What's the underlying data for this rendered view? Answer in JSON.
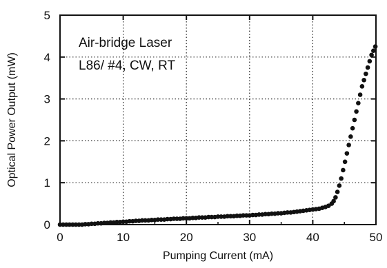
{
  "chart_data": {
    "type": "scatter",
    "title": "",
    "xlabel": "Pumping Current (mA)",
    "ylabel": "Optical Power Output (mW)",
    "xlim": [
      0,
      50
    ],
    "ylim": [
      0,
      5
    ],
    "x_ticks": [
      0,
      10,
      20,
      30,
      40,
      50
    ],
    "y_ticks": [
      0,
      1,
      2,
      3,
      4,
      5
    ],
    "grid": "dotted",
    "annotations": [
      "Air-bridge Laser",
      "L86/ #4, CW, RT"
    ],
    "series": [
      {
        "marker": "filled-circle",
        "color": "#111111",
        "x": [
          0.0,
          0.5,
          1.0,
          1.5,
          2.0,
          2.5,
          3.0,
          3.5,
          4.0,
          4.5,
          5.0,
          5.5,
          6.0,
          6.5,
          7.0,
          7.5,
          8.0,
          8.5,
          9.0,
          9.5,
          10.0,
          10.5,
          11.0,
          11.5,
          12.0,
          12.5,
          13.0,
          13.5,
          14.0,
          14.5,
          15.0,
          15.5,
          16.0,
          16.5,
          17.0,
          17.5,
          18.0,
          18.5,
          19.0,
          19.5,
          20.0,
          20.5,
          21.0,
          21.5,
          22.0,
          22.5,
          23.0,
          23.5,
          24.0,
          24.5,
          25.0,
          25.5,
          26.0,
          26.5,
          27.0,
          27.5,
          28.0,
          28.5,
          29.0,
          29.5,
          30.0,
          30.5,
          31.0,
          31.5,
          32.0,
          32.5,
          33.0,
          33.5,
          34.0,
          34.5,
          35.0,
          35.5,
          36.0,
          36.5,
          37.0,
          37.5,
          38.0,
          38.5,
          39.0,
          39.5,
          40.0,
          40.5,
          41.0,
          41.5,
          42.0,
          42.5,
          43.0,
          43.3,
          43.6,
          43.9,
          44.2,
          44.5,
          44.8,
          45.1,
          45.4,
          45.7,
          46.0,
          46.3,
          46.6,
          46.9,
          47.2,
          47.5,
          47.8,
          48.1,
          48.4,
          48.7,
          49.0,
          49.3,
          49.6,
          49.9
        ],
        "y": [
          0.0,
          0.0,
          0.0,
          0.0,
          0.0,
          0.0,
          0.0,
          0.0,
          0.01,
          0.01,
          0.02,
          0.02,
          0.03,
          0.03,
          0.04,
          0.04,
          0.05,
          0.05,
          0.06,
          0.06,
          0.07,
          0.07,
          0.08,
          0.08,
          0.09,
          0.09,
          0.1,
          0.1,
          0.1,
          0.11,
          0.11,
          0.12,
          0.12,
          0.12,
          0.13,
          0.13,
          0.14,
          0.14,
          0.14,
          0.15,
          0.15,
          0.15,
          0.16,
          0.16,
          0.17,
          0.17,
          0.17,
          0.18,
          0.18,
          0.18,
          0.19,
          0.19,
          0.19,
          0.2,
          0.2,
          0.2,
          0.21,
          0.21,
          0.22,
          0.22,
          0.22,
          0.23,
          0.23,
          0.24,
          0.24,
          0.25,
          0.25,
          0.26,
          0.26,
          0.27,
          0.27,
          0.28,
          0.29,
          0.29,
          0.3,
          0.31,
          0.32,
          0.33,
          0.34,
          0.35,
          0.36,
          0.37,
          0.38,
          0.4,
          0.42,
          0.45,
          0.5,
          0.56,
          0.65,
          0.78,
          0.93,
          1.1,
          1.3,
          1.5,
          1.7,
          1.9,
          2.1,
          2.3,
          2.5,
          2.7,
          2.9,
          3.1,
          3.3,
          3.45,
          3.6,
          3.75,
          3.9,
          4.05,
          4.15,
          4.25
        ]
      }
    ]
  }
}
